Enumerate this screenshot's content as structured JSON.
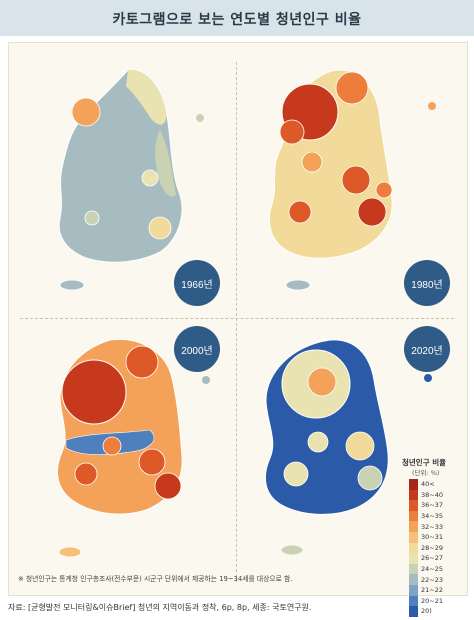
{
  "title": "카토그램으로 보는 연도별 청년인구 비율",
  "maps": [
    {
      "year_label": "1966년"
    },
    {
      "year_label": "1980년"
    },
    {
      "year_label": "2000년"
    },
    {
      "year_label": "2020년"
    }
  ],
  "legend": {
    "title": "청년인구 비율",
    "unit": "(단위: %)",
    "items": [
      {
        "label": "40<",
        "color": "#a8271a"
      },
      {
        "label": "38~40",
        "color": "#c7391d"
      },
      {
        "label": "36~37",
        "color": "#dd5a28"
      },
      {
        "label": "34~35",
        "color": "#ec7d3b"
      },
      {
        "label": "32~33",
        "color": "#f4a259"
      },
      {
        "label": "30~31",
        "color": "#f7c07a"
      },
      {
        "label": "28~29",
        "color": "#f2da9a"
      },
      {
        "label": "26~27",
        "color": "#e8e3b0"
      },
      {
        "label": "24~25",
        "color": "#c9d3b4"
      },
      {
        "label": "22~23",
        "color": "#a7bcc0"
      },
      {
        "label": "21~22",
        "color": "#7fa1c4"
      },
      {
        "label": "20~21",
        "color": "#4f7fbd"
      },
      {
        "label": "20)",
        "color": "#2a5aa8"
      }
    ]
  },
  "footnote": "※ 청년인구는 통계청 인구총조사(전수부문) 시군구 단위에서 제공하는 19~34세를 대상으로 함.",
  "source": "자료: [균형발전 모니터링&이슈Brief] 청년의 지역이동과 정착, 6p, 8p, 세종: 국토연구원."
}
